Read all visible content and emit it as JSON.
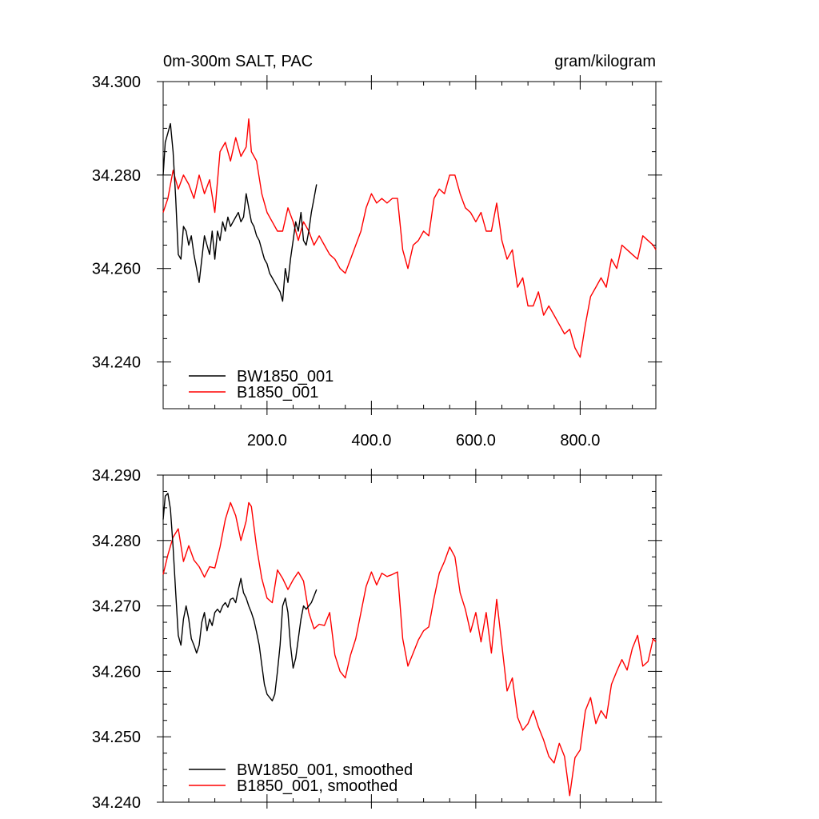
{
  "chart_data": [
    {
      "type": "line",
      "title": "0m-300m SALT, PAC",
      "units": "gram/kilogram",
      "xlim": [
        1,
        945
      ],
      "ylim": [
        34.23,
        34.3
      ],
      "x_ticks": [
        200,
        400,
        600,
        800
      ],
      "x_tick_labels": [
        "200.0",
        "400.0",
        "600.0",
        "800.0"
      ],
      "y_ticks": [
        34.24,
        34.26,
        34.28,
        34.3
      ],
      "y_tick_labels": [
        "34.240",
        "34.260",
        "34.280",
        "34.300"
      ],
      "legend_placement": "bottom-left",
      "grid": false,
      "series": [
        {
          "name": "BW1850_001",
          "color": "#000000",
          "x": [
            1,
            5,
            10,
            15,
            20,
            25,
            30,
            35,
            40,
            45,
            50,
            55,
            60,
            65,
            70,
            75,
            80,
            85,
            90,
            95,
            100,
            105,
            110,
            115,
            120,
            125,
            130,
            135,
            140,
            145,
            150,
            155,
            160,
            165,
            170,
            175,
            180,
            185,
            190,
            195,
            200,
            205,
            210,
            215,
            220,
            225,
            230,
            235,
            240,
            245,
            250,
            255,
            260,
            265,
            270,
            275,
            280,
            285,
            290,
            295
          ],
          "values": [
            34.28,
            34.287,
            34.289,
            34.291,
            34.285,
            34.275,
            34.263,
            34.262,
            34.269,
            34.268,
            34.265,
            34.267,
            34.263,
            34.26,
            34.257,
            34.262,
            34.267,
            34.265,
            34.263,
            34.268,
            34.262,
            34.268,
            34.266,
            34.27,
            34.268,
            34.271,
            34.269,
            34.27,
            34.271,
            34.272,
            34.27,
            34.271,
            34.276,
            34.273,
            34.27,
            34.269,
            34.267,
            34.266,
            34.264,
            34.262,
            34.261,
            34.259,
            34.258,
            34.257,
            34.256,
            34.255,
            34.253,
            34.26,
            34.257,
            34.262,
            34.266,
            34.27,
            34.268,
            34.272,
            34.266,
            34.265,
            34.268,
            34.272,
            34.275,
            34.278
          ]
        },
        {
          "name": "B1850_001",
          "color": "#ff0000",
          "x": [
            1,
            10,
            20,
            30,
            40,
            50,
            60,
            70,
            80,
            90,
            100,
            110,
            120,
            130,
            140,
            150,
            160,
            165,
            170,
            180,
            190,
            200,
            210,
            220,
            230,
            240,
            250,
            260,
            270,
            280,
            290,
            300,
            310,
            320,
            330,
            340,
            350,
            360,
            370,
            380,
            390,
            400,
            410,
            420,
            430,
            440,
            450,
            460,
            470,
            480,
            490,
            500,
            510,
            520,
            530,
            540,
            550,
            560,
            570,
            580,
            590,
            600,
            610,
            620,
            630,
            640,
            650,
            660,
            670,
            680,
            690,
            700,
            710,
            720,
            730,
            740,
            750,
            760,
            770,
            780,
            790,
            800,
            810,
            820,
            830,
            840,
            850,
            860,
            870,
            880,
            890,
            900,
            910,
            920,
            930,
            940,
            945
          ],
          "values": [
            34.272,
            34.275,
            34.281,
            34.277,
            34.28,
            34.278,
            34.275,
            34.28,
            34.276,
            34.279,
            34.272,
            34.285,
            34.287,
            34.283,
            34.288,
            34.284,
            34.286,
            34.292,
            34.285,
            34.283,
            34.276,
            34.272,
            34.27,
            34.268,
            34.268,
            34.273,
            34.27,
            34.266,
            34.27,
            34.268,
            34.265,
            34.267,
            34.265,
            34.263,
            34.262,
            34.26,
            34.259,
            34.262,
            34.265,
            34.268,
            34.273,
            34.276,
            34.274,
            34.275,
            34.274,
            34.275,
            34.275,
            34.264,
            34.26,
            34.265,
            34.266,
            34.268,
            34.267,
            34.275,
            34.277,
            34.276,
            34.28,
            34.28,
            34.276,
            34.273,
            34.272,
            34.27,
            34.272,
            34.268,
            34.268,
            34.274,
            34.266,
            34.262,
            34.264,
            34.256,
            34.258,
            34.252,
            34.252,
            34.255,
            34.25,
            34.252,
            34.25,
            34.248,
            34.246,
            34.247,
            34.243,
            34.241,
            34.248,
            34.254,
            34.256,
            34.258,
            34.256,
            34.262,
            34.26,
            34.265,
            34.264,
            34.263,
            34.262,
            34.267,
            34.266,
            34.265,
            34.264
          ]
        }
      ]
    },
    {
      "type": "line",
      "xlim": [
        1,
        945
      ],
      "ylim": [
        34.24,
        34.29
      ],
      "x_ticks": [
        200,
        400,
        600,
        800
      ],
      "y_ticks": [
        34.24,
        34.25,
        34.26,
        34.27,
        34.28,
        34.29
      ],
      "y_tick_labels": [
        "34.240",
        "34.250",
        "34.260",
        "34.270",
        "34.280",
        "34.290"
      ],
      "legend_placement": "bottom-left",
      "grid": false,
      "series": [
        {
          "name": "BW1850_001, smoothed",
          "color": "#000000",
          "x": [
            1,
            5,
            10,
            15,
            20,
            25,
            30,
            35,
            40,
            45,
            50,
            55,
            60,
            65,
            70,
            75,
            80,
            85,
            90,
            95,
            100,
            105,
            110,
            115,
            120,
            125,
            130,
            135,
            140,
            145,
            150,
            155,
            160,
            165,
            170,
            175,
            180,
            185,
            190,
            195,
            200,
            205,
            210,
            215,
            220,
            225,
            230,
            235,
            240,
            245,
            250,
            255,
            260,
            265,
            270,
            275,
            280,
            285,
            290,
            295
          ],
          "values": [
            34.2832,
            34.2868,
            34.2872,
            34.2848,
            34.279,
            34.272,
            34.2655,
            34.264,
            34.268,
            34.27,
            34.268,
            34.265,
            34.264,
            34.2628,
            34.264,
            34.2675,
            34.269,
            34.2662,
            34.268,
            34.267,
            34.269,
            34.2695,
            34.269,
            34.27,
            34.2705,
            34.2698,
            34.271,
            34.2712,
            34.2705,
            34.2725,
            34.2742,
            34.272,
            34.2712,
            34.27,
            34.269,
            34.2678,
            34.266,
            34.264,
            34.261,
            34.258,
            34.2565,
            34.256,
            34.2555,
            34.2565,
            34.26,
            34.264,
            34.27,
            34.2712,
            34.269,
            34.264,
            34.2605,
            34.262,
            34.265,
            34.268,
            34.27,
            34.2695,
            34.27,
            34.2705,
            34.2715,
            34.2725
          ]
        },
        {
          "name": "B1850_001, smoothed",
          "color": "#ff0000",
          "x": [
            1,
            10,
            20,
            30,
            40,
            50,
            60,
            70,
            80,
            90,
            100,
            110,
            120,
            130,
            140,
            150,
            160,
            165,
            170,
            180,
            190,
            200,
            210,
            220,
            230,
            240,
            250,
            260,
            270,
            280,
            290,
            300,
            310,
            320,
            330,
            340,
            350,
            360,
            370,
            380,
            390,
            400,
            410,
            420,
            430,
            440,
            450,
            460,
            470,
            480,
            490,
            500,
            510,
            520,
            530,
            540,
            550,
            560,
            570,
            580,
            590,
            600,
            610,
            620,
            630,
            640,
            650,
            660,
            670,
            680,
            690,
            700,
            710,
            720,
            730,
            740,
            750,
            760,
            770,
            780,
            790,
            800,
            810,
            820,
            830,
            840,
            850,
            860,
            870,
            880,
            890,
            900,
            910,
            920,
            930,
            940,
            945
          ],
          "values": [
            34.2748,
            34.2778,
            34.2805,
            34.2818,
            34.2768,
            34.2792,
            34.277,
            34.276,
            34.2744,
            34.276,
            34.2758,
            34.279,
            34.2832,
            34.2858,
            34.2838,
            34.28,
            34.283,
            34.2858,
            34.2852,
            34.279,
            34.2742,
            34.2712,
            34.2705,
            34.2755,
            34.2742,
            34.2725,
            34.274,
            34.2752,
            34.2738,
            34.269,
            34.2665,
            34.2672,
            34.267,
            34.269,
            34.2625,
            34.26,
            34.259,
            34.2625,
            34.265,
            34.269,
            34.273,
            34.2752,
            34.2732,
            34.275,
            34.2745,
            34.2748,
            34.2752,
            34.265,
            34.2608,
            34.2628,
            34.2648,
            34.2662,
            34.2668,
            34.2712,
            34.275,
            34.2768,
            34.279,
            34.2775,
            34.272,
            34.2695,
            34.266,
            34.269,
            34.2645,
            34.269,
            34.2628,
            34.271,
            34.264,
            34.257,
            34.259,
            34.253,
            34.251,
            34.252,
            34.254,
            34.2515,
            34.2495,
            34.247,
            34.246,
            34.249,
            34.247,
            34.241,
            34.2468,
            34.248,
            34.254,
            34.256,
            34.252,
            34.254,
            34.2528,
            34.258,
            34.26,
            34.2618,
            34.2602,
            34.2635,
            34.2655,
            34.2608,
            34.2615,
            34.265,
            34.2645
          ]
        }
      ]
    }
  ]
}
